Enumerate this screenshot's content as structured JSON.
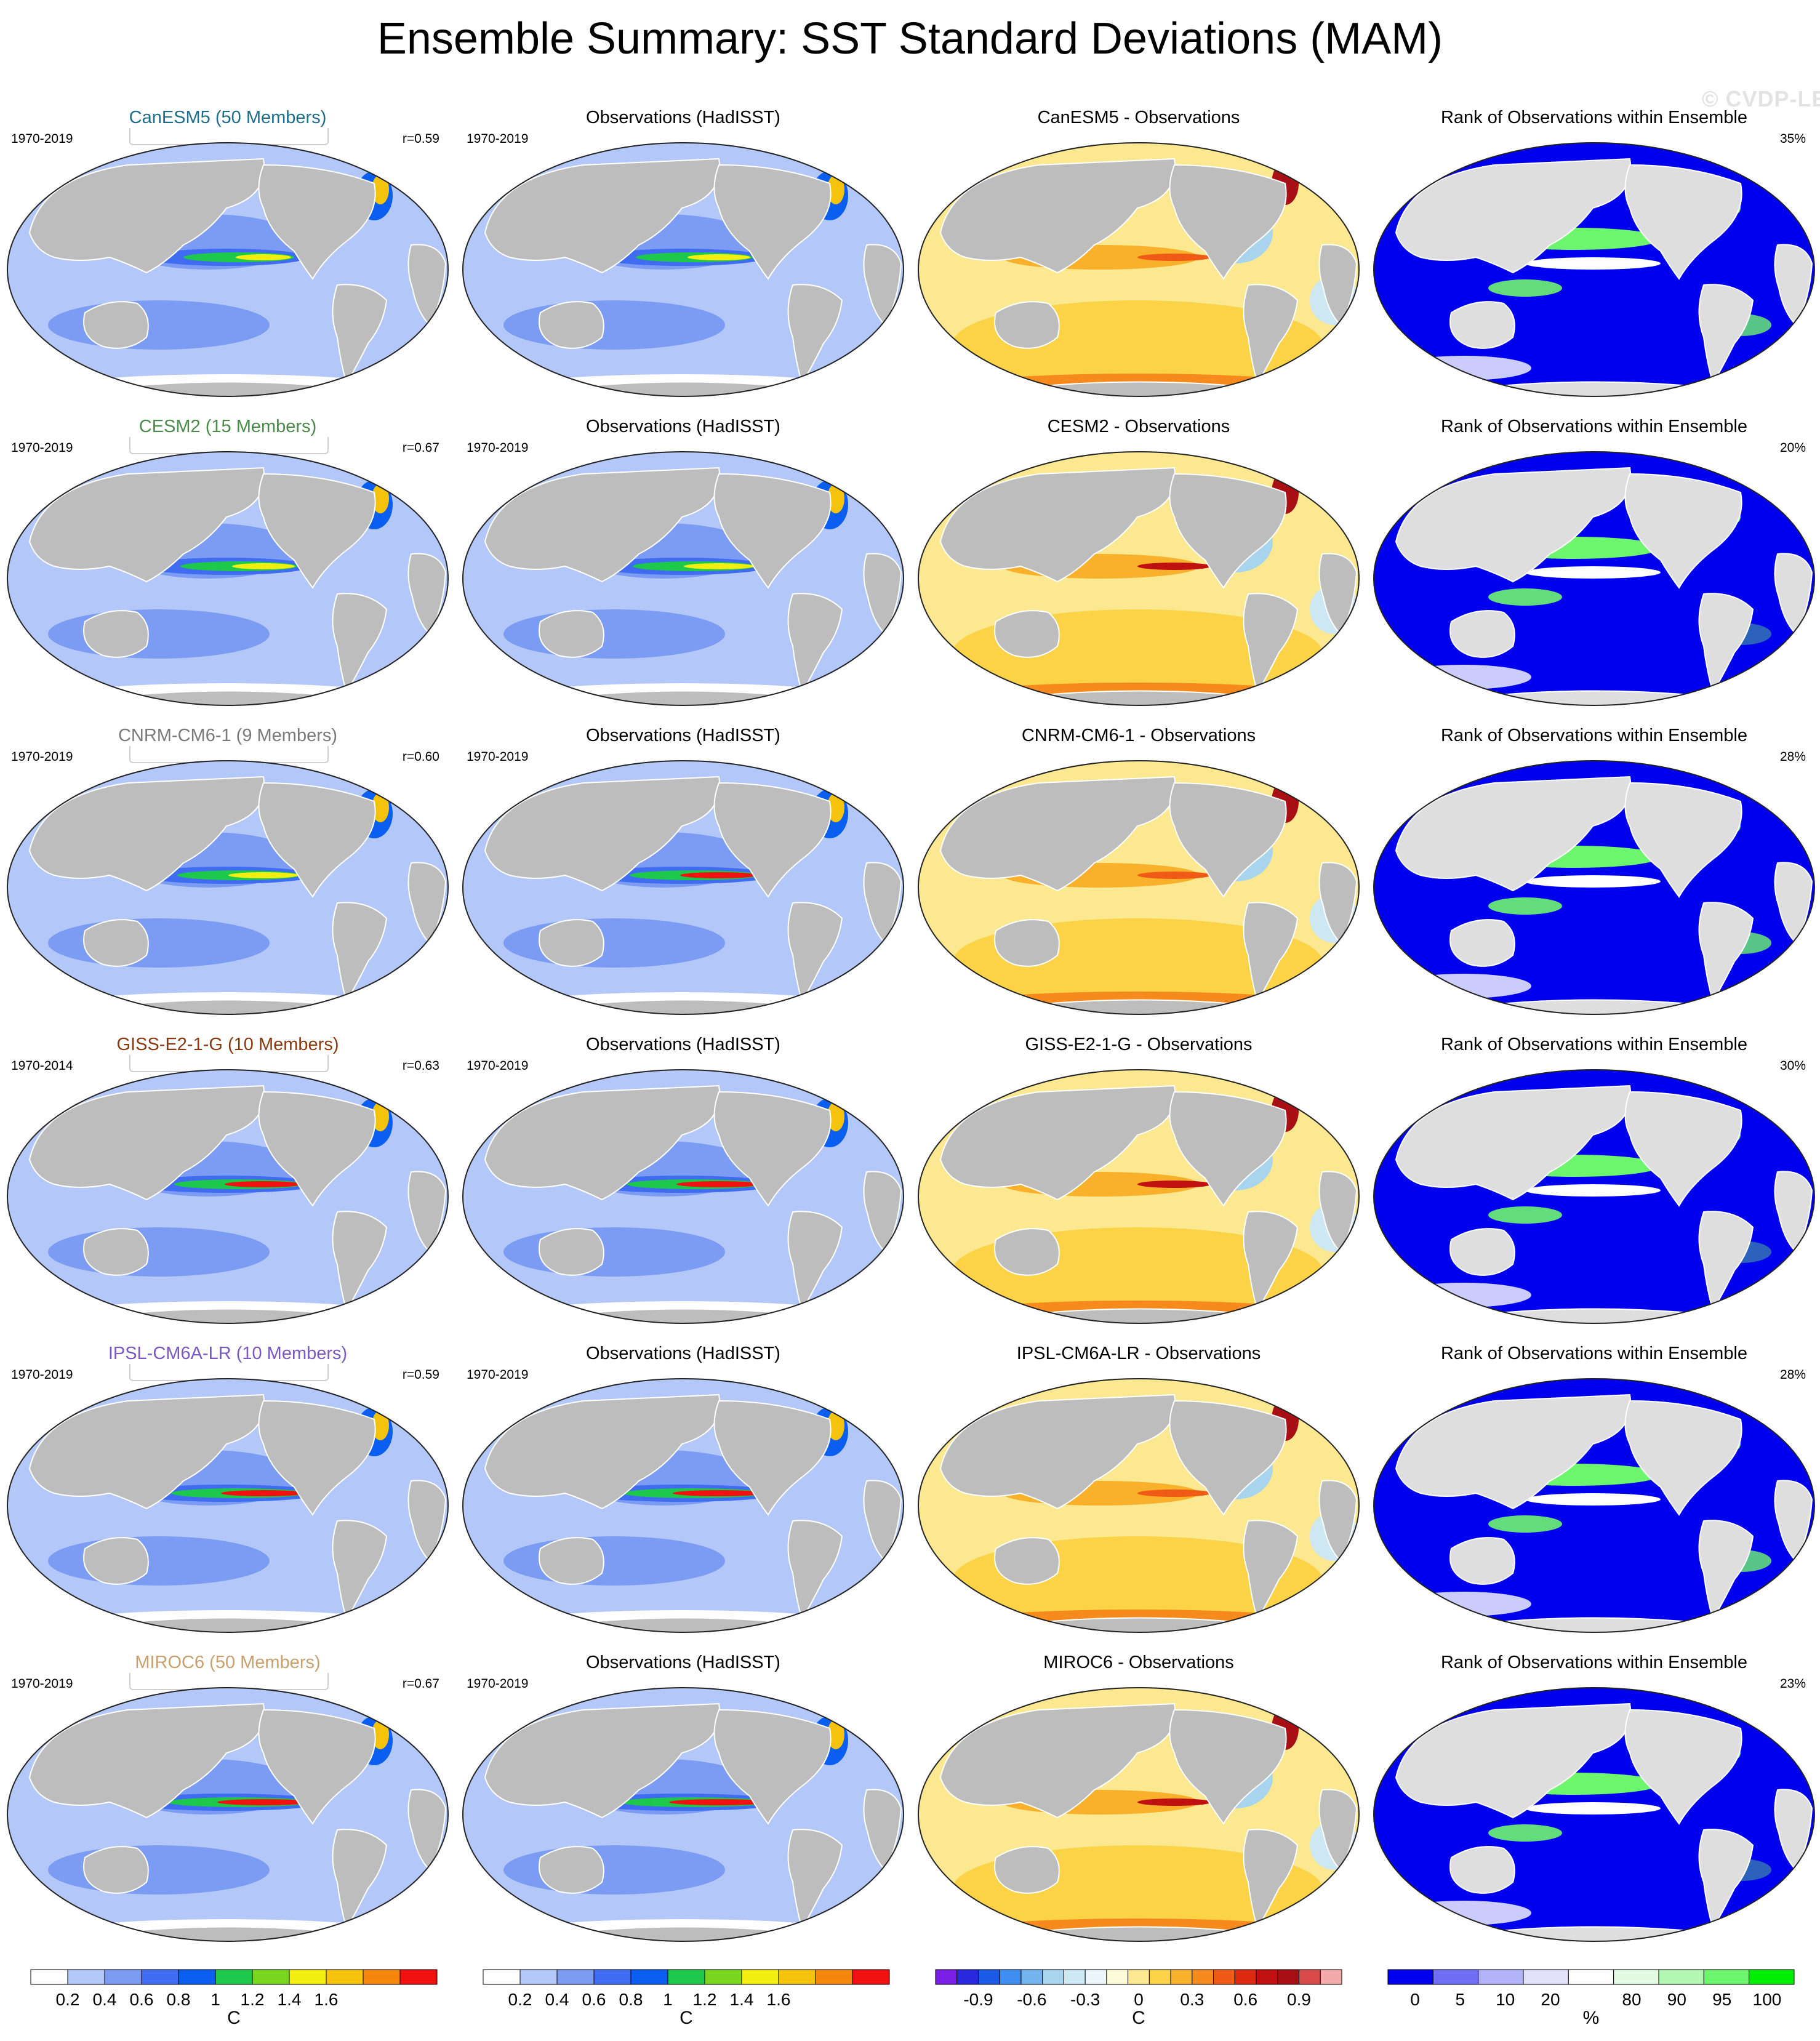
{
  "title": "Ensemble Summary: SST Standard Deviations (MAM)",
  "watermark": "© CVDP-LE",
  "colors": {
    "land": "#bdbdbd",
    "sd_scale": [
      "#ffffff",
      "#b3c8f8",
      "#7c9bf2",
      "#3f6cf0",
      "#0a5ff0",
      "#1ec84a",
      "#7ad61e",
      "#f2ee12",
      "#f5c20c",
      "#f5860c",
      "#f11111"
    ],
    "diff_scale": [
      "#7b1fe6",
      "#2a29e0",
      "#1b5be8",
      "#3d8ef0",
      "#74b4ee",
      "#a9d4ee",
      "#cde7f3",
      "#eaf6fb",
      "#fefcd8",
      "#fbe890",
      "#fcd246",
      "#f9b02a",
      "#f68a1c",
      "#ef5b16",
      "#df2a12",
      "#c01010",
      "#a80f14",
      "#d84a4a",
      "#f2aaaa"
    ],
    "rank_scale": [
      "#0000ee",
      "#6e6ef5",
      "#b2b2f8",
      "#e1e1fa",
      "#ffffff",
      "#e1fae1",
      "#b2f8b2",
      "#6ef56e",
      "#00ee00"
    ]
  },
  "colorbars": [
    {
      "unit": "C",
      "labels": [
        "0.2",
        "0.4",
        "0.6",
        "0.8",
        "1",
        "1.2",
        "1.4",
        "1.6"
      ]
    },
    {
      "unit": "C",
      "labels": [
        "0.2",
        "0.4",
        "0.6",
        "0.8",
        "1",
        "1.2",
        "1.4",
        "1.6"
      ]
    },
    {
      "unit": "C",
      "labels": [
        "-0.9",
        "-0.6",
        "-0.3",
        "0",
        "0.3",
        "0.6",
        "0.9"
      ]
    },
    {
      "unit": "%",
      "labels": [
        "0",
        "5",
        "10",
        "20",
        "80",
        "90",
        "95",
        "100"
      ]
    }
  ],
  "obs_title": "Observations (HadISST)",
  "obs_period": "1970-2019",
  "rank_title": "Rank of Observations within Ensemble",
  "chart_data": [
    {
      "type": "heatmap",
      "model": "CanESM5",
      "title": "CanESM5 (50 Members)",
      "title_color": "#1f6e8c",
      "period": "1970-2019",
      "r": "r=0.59",
      "diff_title": "CanESM5 - Observations",
      "rank_pct": "35%"
    },
    {
      "type": "heatmap",
      "model": "CESM2",
      "title": "CESM2 (15 Members)",
      "title_color": "#4a8a4a",
      "period": "1970-2019",
      "r": "r=0.67",
      "diff_title": "CESM2 - Observations",
      "rank_pct": "20%"
    },
    {
      "type": "heatmap",
      "model": "CNRM-CM6-1",
      "title": "CNRM-CM6-1 (9 Members)",
      "title_color": "#7a7a7a",
      "period": "1970-2019",
      "r": "r=0.60",
      "diff_title": "CNRM-CM6-1 - Observations",
      "rank_pct": "28%"
    },
    {
      "type": "heatmap",
      "model": "GISS-E2-1-G",
      "title": "GISS-E2-1-G (10 Members)",
      "title_color": "#8a3a10",
      "period": "1970-2014",
      "r": "r=0.63",
      "diff_title": "GISS-E2-1-G - Observations",
      "rank_pct": "30%"
    },
    {
      "type": "heatmap",
      "model": "IPSL-CM6A-LR",
      "title": "IPSL-CM6A-LR (10 Members)",
      "title_color": "#7a5ac0",
      "period": "1970-2019",
      "r": "r=0.59",
      "diff_title": "IPSL-CM6A-LR - Observations",
      "rank_pct": "28%"
    },
    {
      "type": "heatmap",
      "model": "MIROC6",
      "title": "MIROC6 (50 Members)",
      "title_color": "#c8a070",
      "period": "1970-2019",
      "r": "r=0.67",
      "diff_title": "MIROC6 - Observations",
      "rank_pct": "23%"
    }
  ]
}
